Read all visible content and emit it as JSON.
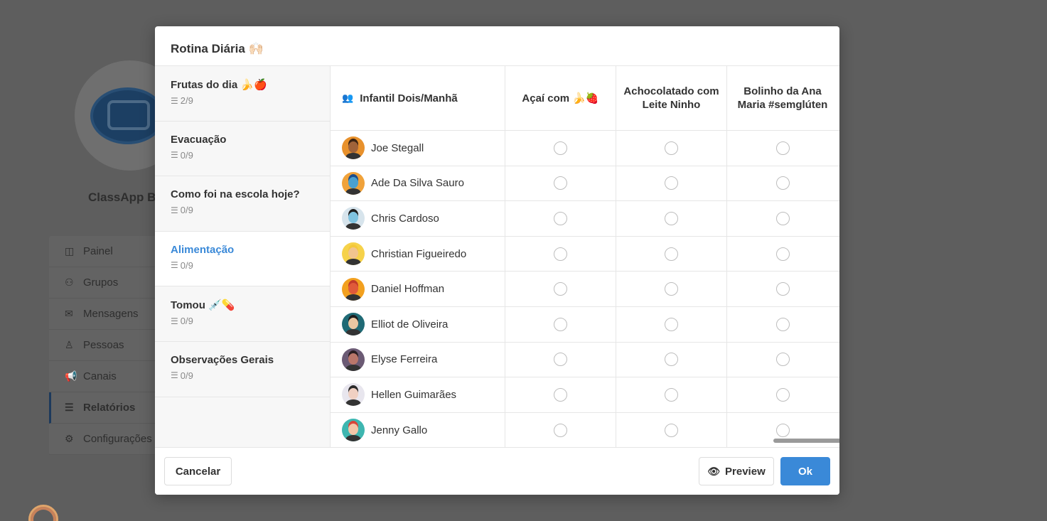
{
  "background": {
    "brand": "ClassApp Be",
    "menu": [
      {
        "label": "Painel",
        "icon": "panel-icon",
        "glyph": "◫"
      },
      {
        "label": "Grupos",
        "icon": "groups-icon",
        "glyph": "⚇"
      },
      {
        "label": "Mensagens",
        "icon": "mail-icon",
        "glyph": "✉"
      },
      {
        "label": "Pessoas",
        "icon": "person-icon",
        "glyph": "♙"
      },
      {
        "label": "Canais",
        "icon": "megaphone-icon",
        "glyph": "📢"
      },
      {
        "label": "Relatórios",
        "icon": "list-icon",
        "glyph": "☰"
      },
      {
        "label": "Configurações",
        "icon": "gear-icon",
        "glyph": "⚙"
      }
    ]
  },
  "modal": {
    "title": "Rotina Diária 🙌🏻",
    "sections": [
      {
        "title": "Frutas do dia 🍌🍎",
        "count": "2/9"
      },
      {
        "title": "Evacuação",
        "count": "0/9"
      },
      {
        "title": "Como foi na escola hoje?",
        "count": "0/9"
      },
      {
        "title": "Alimentação",
        "count": "0/9",
        "active": true
      },
      {
        "title": "Tomou 💉💊",
        "count": "0/9"
      },
      {
        "title": "Observações Gerais",
        "count": "0/9"
      }
    ],
    "table": {
      "group_label": "Infantil Dois/Manhã",
      "columns": [
        "Açaí com 🍌🍓",
        "Achocolatado com Leite Ninho",
        "Bolinho da Ana Maria #semglúten"
      ],
      "students": [
        {
          "name": "Joe Stegall",
          "avatar_bg": "#e8912c",
          "hair": "#3b2414",
          "skin": "#a0633a"
        },
        {
          "name": "Ade Da Silva Sauro",
          "avatar_bg": "#f0a23a",
          "hair": "#1d4d8a",
          "skin": "#4aa0d0"
        },
        {
          "name": "Chris Cardoso",
          "avatar_bg": "#d7e4ec",
          "hair": "#1e1e1e",
          "skin": "#7fc3e0"
        },
        {
          "name": "Christian Figueiredo",
          "avatar_bg": "#f6d24a",
          "hair": "#f4c83a",
          "skin": "#f1c48e"
        },
        {
          "name": "Daniel Hoffman",
          "avatar_bg": "#f2a01f",
          "hair": "#c23b2a",
          "skin": "#e05a3a"
        },
        {
          "name": "Elliot de Oliveira",
          "avatar_bg": "#1f6a75",
          "hair": "#1e1e1e",
          "skin": "#e9c7a2"
        },
        {
          "name": "Elyse Ferreira",
          "avatar_bg": "#6b5a74",
          "hair": "#2a1e22",
          "skin": "#b9766a"
        },
        {
          "name": "Hellen Guimarães",
          "avatar_bg": "#e8e6ee",
          "hair": "#2b2b2b",
          "skin": "#f0d0c2"
        },
        {
          "name": "Jenny Gallo",
          "avatar_bg": "#3eb6b0",
          "hair": "#d8453a",
          "skin": "#f3c6a8"
        }
      ]
    },
    "buttons": {
      "cancel": "Cancelar",
      "preview": "Preview",
      "ok": "Ok"
    }
  }
}
